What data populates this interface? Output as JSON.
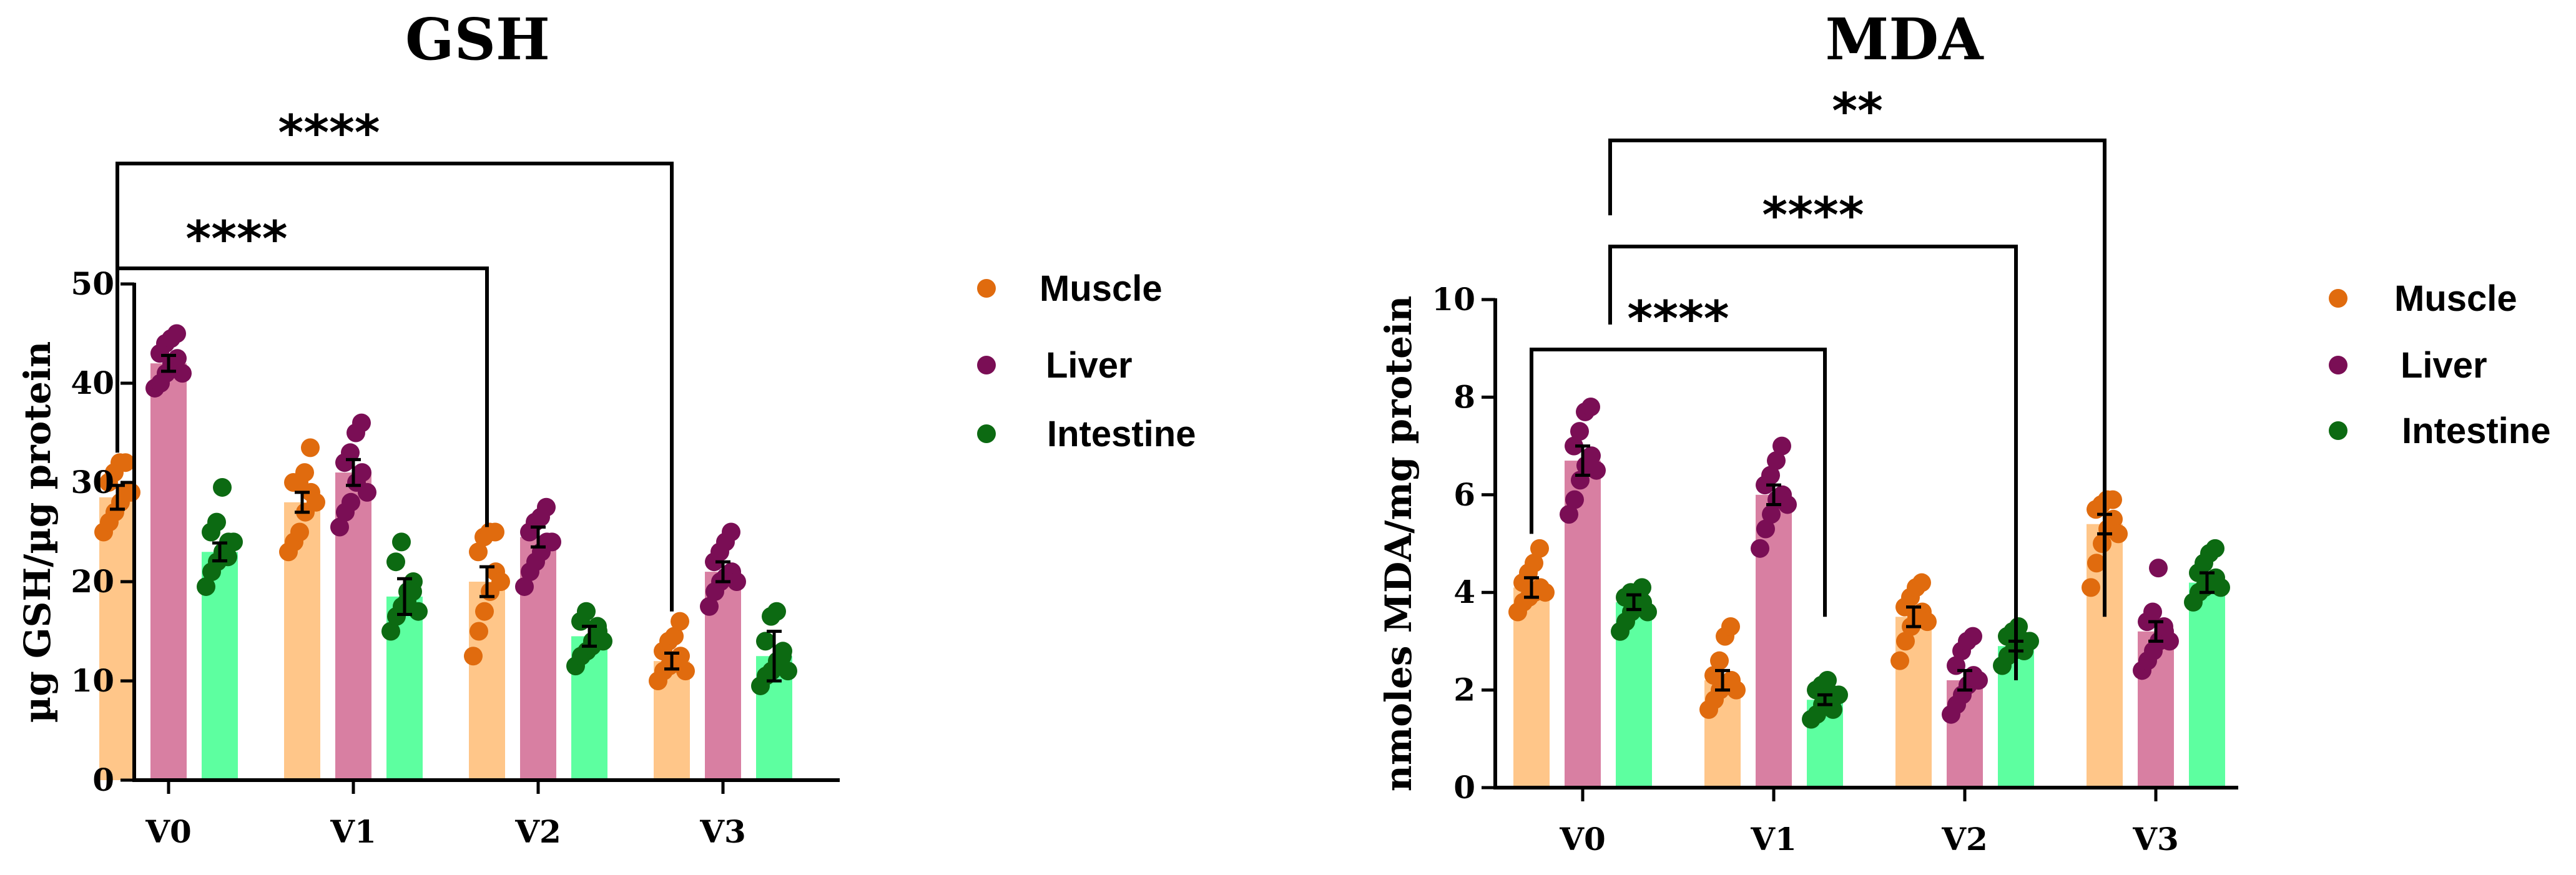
{
  "colors": {
    "muscle_bar": "#FFC689",
    "muscle_dot": "#E06B0E",
    "liver_bar": "#D87FA2",
    "liver_dot": "#7A0E55",
    "intestine_bar": "#5DFFA0",
    "intestine_dot": "#0C6A12"
  },
  "chart_data": [
    {
      "type": "bar",
      "title": "GSH",
      "ylabel": "µg GSH/µg protein",
      "xlabel": "",
      "categories": [
        "V0",
        "V1",
        "V2",
        "V3"
      ],
      "ylim": [
        0,
        50
      ],
      "yticks": [
        0,
        10,
        20,
        30,
        40,
        50
      ],
      "series": [
        {
          "name": "Muscle",
          "values": [
            28.5,
            28,
            20,
            12
          ],
          "errors": [
            1.2,
            1.0,
            1.5,
            0.8
          ],
          "points": [
            [
              25,
              26,
              27,
              28,
              29,
              30,
              31,
              32,
              32,
              29
            ],
            [
              23,
              24,
              25,
              27,
              29,
              30,
              30,
              31,
              33.5,
              28
            ],
            [
              12.5,
              15,
              17,
              19,
              21,
              23,
              24.5,
              25,
              25,
              20
            ],
            [
              10,
              11,
              11.5,
              12,
              12.5,
              13,
              14,
              14.5,
              16,
              11
            ]
          ]
        },
        {
          "name": "Liver",
          "values": [
            42,
            31,
            24.5,
            21
          ],
          "errors": [
            0.8,
            1.3,
            1.0,
            1.0
          ],
          "points": [
            [
              39.5,
              40,
              41,
              42,
              42.5,
              43,
              44,
              44.5,
              45,
              41
            ],
            [
              25.5,
              27,
              28,
              30,
              31,
              32,
              33,
              35,
              36,
              29
            ],
            [
              19.5,
              21,
              22,
              23,
              24,
              25,
              26,
              26.5,
              27.5,
              24
            ],
            [
              17.5,
              19,
              20,
              20.5,
              21,
              22,
              23,
              24,
              25,
              20
            ]
          ]
        },
        {
          "name": "Intestine",
          "values": [
            23,
            18.5,
            14.5,
            12.5
          ],
          "errors": [
            0.9,
            1.8,
            1.0,
            2.5
          ],
          "points": [
            [
              19.5,
              21,
              22,
              23,
              24,
              25,
              26,
              29.5,
              22.5,
              24
            ],
            [
              15,
              16.5,
              17.5,
              19,
              20,
              22,
              24,
              18,
              19,
              17
            ],
            [
              11.5,
              12.5,
              13,
              14,
              15,
              16,
              17,
              13.5,
              15.5,
              14
            ],
            [
              9.5,
              10.5,
              11,
              12,
              13,
              14,
              16.5,
              17,
              12.5,
              11
            ]
          ]
        }
      ],
      "annotations": [
        {
          "from": "V0",
          "to": "V2",
          "label": "****"
        },
        {
          "from": "V0",
          "to": "V3",
          "label": "****"
        }
      ]
    },
    {
      "type": "bar",
      "title": "MDA",
      "ylabel": "nmoles MDA/mg protein",
      "xlabel": "",
      "categories": [
        "V0",
        "V1",
        "V2",
        "V3"
      ],
      "ylim": [
        0,
        10
      ],
      "yticks": [
        0,
        2,
        4,
        6,
        8,
        10
      ],
      "series": [
        {
          "name": "Muscle",
          "values": [
            4.1,
            2.2,
            3.5,
            5.4
          ],
          "errors": [
            0.2,
            0.2,
            0.2,
            0.2
          ],
          "points": [
            [
              3.6,
              3.8,
              3.9,
              4.0,
              4.1,
              4.2,
              4.4,
              4.6,
              4.9,
              4.0
            ],
            [
              1.6,
              1.8,
              2.0,
              2.1,
              2.2,
              2.3,
              2.6,
              3.1,
              3.3,
              2.0
            ],
            [
              2.6,
              3.0,
              3.3,
              3.5,
              3.6,
              3.7,
              3.9,
              4.1,
              4.2,
              3.4
            ],
            [
              4.1,
              4.6,
              5.0,
              5.3,
              5.5,
              5.7,
              5.8,
              5.9,
              5.9,
              5.2
            ]
          ]
        },
        {
          "name": "Liver",
          "values": [
            6.7,
            6.0,
            2.2,
            3.2
          ],
          "errors": [
            0.3,
            0.2,
            0.2,
            0.2
          ],
          "points": [
            [
              5.6,
              5.9,
              6.3,
              6.6,
              6.8,
              7.0,
              7.3,
              7.7,
              7.8,
              6.5
            ],
            [
              4.9,
              5.3,
              5.6,
              5.9,
              6.0,
              6.2,
              6.4,
              6.7,
              7.0,
              5.8
            ],
            [
              1.5,
              1.7,
              1.9,
              2.1,
              2.3,
              2.5,
              2.8,
              3.0,
              3.1,
              2.2
            ],
            [
              2.4,
              2.6,
              2.8,
              3.0,
              3.2,
              3.4,
              3.6,
              4.5,
              3.3,
              3.0
            ]
          ]
        },
        {
          "name": "Intestine",
          "values": [
            3.8,
            1.8,
            2.9,
            4.2
          ],
          "errors": [
            0.15,
            0.1,
            0.1,
            0.2
          ],
          "points": [
            [
              3.2,
              3.4,
              3.6,
              3.7,
              3.8,
              3.9,
              4.0,
              4.0,
              4.1,
              3.6
            ],
            [
              1.4,
              1.5,
              1.7,
              1.8,
              1.9,
              2.0,
              2.1,
              2.2,
              1.6,
              1.9
            ],
            [
              2.5,
              2.7,
              2.8,
              2.9,
              3.0,
              3.1,
              3.2,
              3.3,
              2.8,
              3.0
            ],
            [
              3.8,
              4.0,
              4.1,
              4.2,
              4.3,
              4.4,
              4.6,
              4.8,
              4.9,
              4.1
            ]
          ]
        }
      ],
      "annotations": [
        {
          "from": "V0",
          "to": "V1",
          "label": "****"
        },
        {
          "from": "V0",
          "to": "V2",
          "label": "****"
        },
        {
          "from": "V0",
          "to": "V3",
          "label": "**"
        }
      ]
    }
  ],
  "legend": [
    {
      "name": "Muscle"
    },
    {
      "name": "Liver"
    },
    {
      "name": "Intestine"
    }
  ]
}
